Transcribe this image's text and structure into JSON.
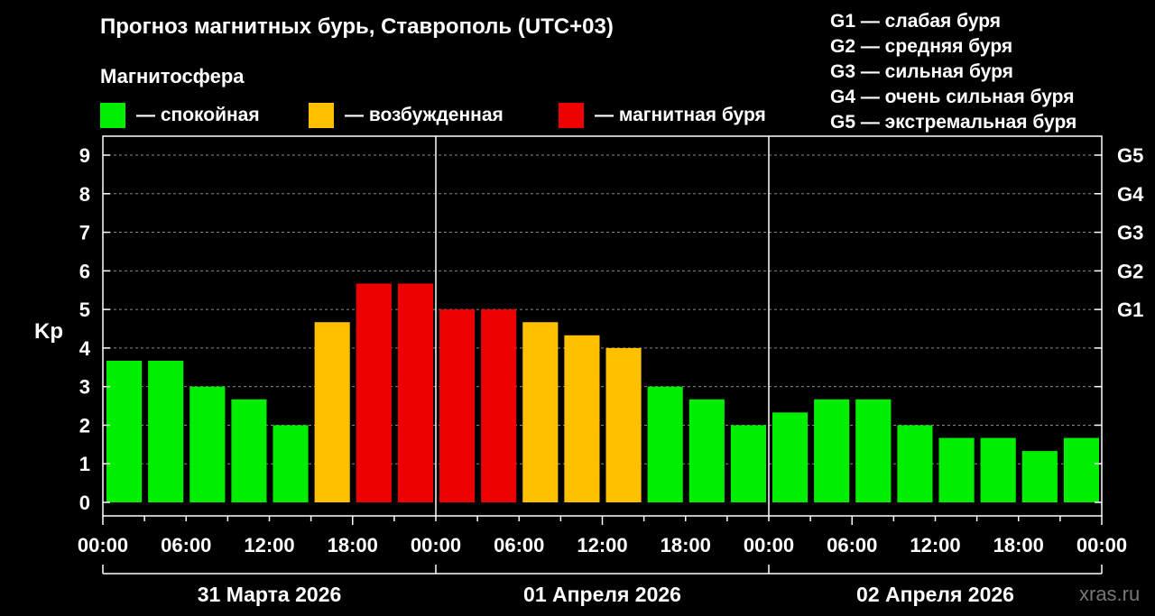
{
  "title": "Прогноз магнитных бурь, Ставрополь (UTC+03)",
  "subtitle": "Магнитосфера",
  "legend": [
    {
      "label": "— спокойная",
      "color": "#00ee00"
    },
    {
      "label": "— возбужденная",
      "color": "#ffc000"
    },
    {
      "label": "— магнитная буря",
      "color": "#ee0000"
    }
  ],
  "g_legend": [
    "G1 — слабая буря",
    "G2 — средняя буря",
    "G3 — сильная буря",
    "G4 — очень сильная буря",
    "G5 — экстремальная буря"
  ],
  "watermark": "xras.ru",
  "chart_data": {
    "type": "bar",
    "ylabel": "Kp",
    "ylim": [
      0,
      9
    ],
    "yticks": [
      "0",
      "1",
      "2",
      "3",
      "4",
      "5",
      "6",
      "7",
      "8",
      "9"
    ],
    "right_ticks": [
      {
        "value": 5,
        "label": "G1"
      },
      {
        "value": 6,
        "label": "G2"
      },
      {
        "value": 7,
        "label": "G3"
      },
      {
        "value": 8,
        "label": "G4"
      },
      {
        "value": 9,
        "label": "G5"
      }
    ],
    "x_tick_labels": [
      "00:00",
      "06:00",
      "12:00",
      "18:00",
      "00:00",
      "06:00",
      "12:00",
      "18:00",
      "00:00",
      "06:00",
      "12:00",
      "18:00",
      "00:00"
    ],
    "days": [
      "31 Марта 2026",
      "01 Апреля 2026",
      "02 Апреля 2026"
    ],
    "values": [
      3.67,
      3.67,
      3.0,
      2.67,
      2.0,
      4.67,
      5.67,
      5.67,
      5.0,
      5.0,
      4.67,
      4.33,
      4.0,
      3.0,
      2.67,
      2.0,
      2.33,
      2.67,
      2.67,
      2.0,
      1.67,
      1.67,
      1.33,
      1.67
    ],
    "levels": [
      "quiet",
      "quiet",
      "quiet",
      "quiet",
      "quiet",
      "active",
      "storm",
      "storm",
      "storm",
      "storm",
      "active",
      "active",
      "active",
      "quiet",
      "quiet",
      "quiet",
      "quiet",
      "quiet",
      "quiet",
      "quiet",
      "quiet",
      "quiet",
      "quiet",
      "quiet"
    ],
    "colors": {
      "quiet": "#00ee00",
      "active": "#ffc000",
      "storm": "#ee0000"
    },
    "grid": true
  }
}
